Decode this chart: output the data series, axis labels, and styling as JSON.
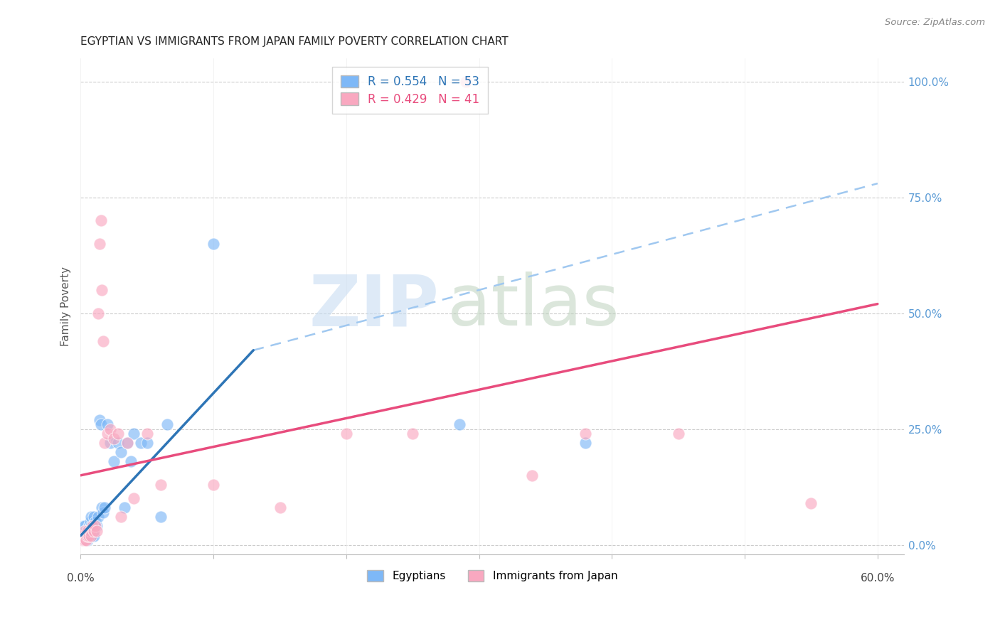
{
  "title": "EGYPTIAN VS IMMIGRANTS FROM JAPAN FAMILY POVERTY CORRELATION CHART",
  "source": "Source: ZipAtlas.com",
  "ylabel": "Family Poverty",
  "xlim": [
    0.0,
    0.62
  ],
  "ylim_min": -0.02,
  "ylim_max": 1.05,
  "yticks": [
    0.0,
    0.25,
    0.5,
    0.75,
    1.0
  ],
  "xticks_minor": [
    0.0,
    0.1,
    0.2,
    0.3,
    0.4,
    0.5,
    0.6
  ],
  "xticks_labeled": [
    0.0,
    0.6
  ],
  "background_color": "#ffffff",
  "grid_color": "#cccccc",
  "egyptians_color": "#7EB8F7",
  "japan_color": "#F9A8C0",
  "egyptians_line_color": "#2E75B6",
  "japan_line_color": "#E84C7D",
  "dashed_color": "#a0c8f0",
  "egyptians_label": "Egyptians",
  "japan_label": "Immigrants from Japan",
  "legend_r_egypt": "R = 0.554",
  "legend_n_egypt": "N = 53",
  "legend_r_japan": "R = 0.429",
  "legend_n_japan": "N = 41",
  "egypt_x": [
    0.001,
    0.001,
    0.001,
    0.002,
    0.002,
    0.002,
    0.003,
    0.003,
    0.003,
    0.004,
    0.004,
    0.004,
    0.005,
    0.005,
    0.005,
    0.006,
    0.006,
    0.006,
    0.007,
    0.007,
    0.007,
    0.008,
    0.008,
    0.008,
    0.009,
    0.009,
    0.01,
    0.01,
    0.01,
    0.011,
    0.012,
    0.013,
    0.014,
    0.015,
    0.016,
    0.017,
    0.018,
    0.02,
    0.022,
    0.025,
    0.028,
    0.03,
    0.033,
    0.035,
    0.038,
    0.04,
    0.045,
    0.05,
    0.06,
    0.065,
    0.1,
    0.285,
    0.38
  ],
  "egypt_y": [
    0.01,
    0.02,
    0.03,
    0.01,
    0.02,
    0.04,
    0.02,
    0.03,
    0.04,
    0.01,
    0.02,
    0.03,
    0.01,
    0.02,
    0.03,
    0.02,
    0.03,
    0.04,
    0.02,
    0.03,
    0.05,
    0.03,
    0.04,
    0.06,
    0.02,
    0.04,
    0.02,
    0.04,
    0.06,
    0.05,
    0.04,
    0.06,
    0.27,
    0.26,
    0.08,
    0.07,
    0.08,
    0.26,
    0.22,
    0.18,
    0.22,
    0.2,
    0.08,
    0.22,
    0.18,
    0.24,
    0.22,
    0.22,
    0.06,
    0.26,
    0.65,
    0.26,
    0.22
  ],
  "japan_x": [
    0.001,
    0.001,
    0.002,
    0.002,
    0.003,
    0.003,
    0.004,
    0.004,
    0.005,
    0.005,
    0.006,
    0.007,
    0.008,
    0.009,
    0.01,
    0.011,
    0.012,
    0.013,
    0.014,
    0.015,
    0.016,
    0.017,
    0.018,
    0.02,
    0.022,
    0.025,
    0.028,
    0.03,
    0.035,
    0.04,
    0.05,
    0.06,
    0.1,
    0.15,
    0.2,
    0.25,
    0.29,
    0.34,
    0.38,
    0.45,
    0.55
  ],
  "japan_y": [
    0.01,
    0.02,
    0.01,
    0.02,
    0.01,
    0.03,
    0.02,
    0.01,
    0.02,
    0.03,
    0.02,
    0.03,
    0.02,
    0.04,
    0.03,
    0.04,
    0.03,
    0.5,
    0.65,
    0.7,
    0.55,
    0.44,
    0.22,
    0.24,
    0.25,
    0.23,
    0.24,
    0.06,
    0.22,
    0.1,
    0.24,
    0.13,
    0.13,
    0.08,
    0.24,
    0.24,
    1.0,
    0.15,
    0.24,
    0.24,
    0.09
  ],
  "egypt_line": {
    "x0": 0.0,
    "y0": 0.02,
    "x1": 0.13,
    "y1": 0.42
  },
  "japan_line": {
    "x0": 0.0,
    "y0": 0.15,
    "x1": 0.6,
    "y1": 0.52
  },
  "dashed_line": {
    "x0": 0.13,
    "y0": 0.42,
    "x1": 0.6,
    "y1": 0.78
  }
}
